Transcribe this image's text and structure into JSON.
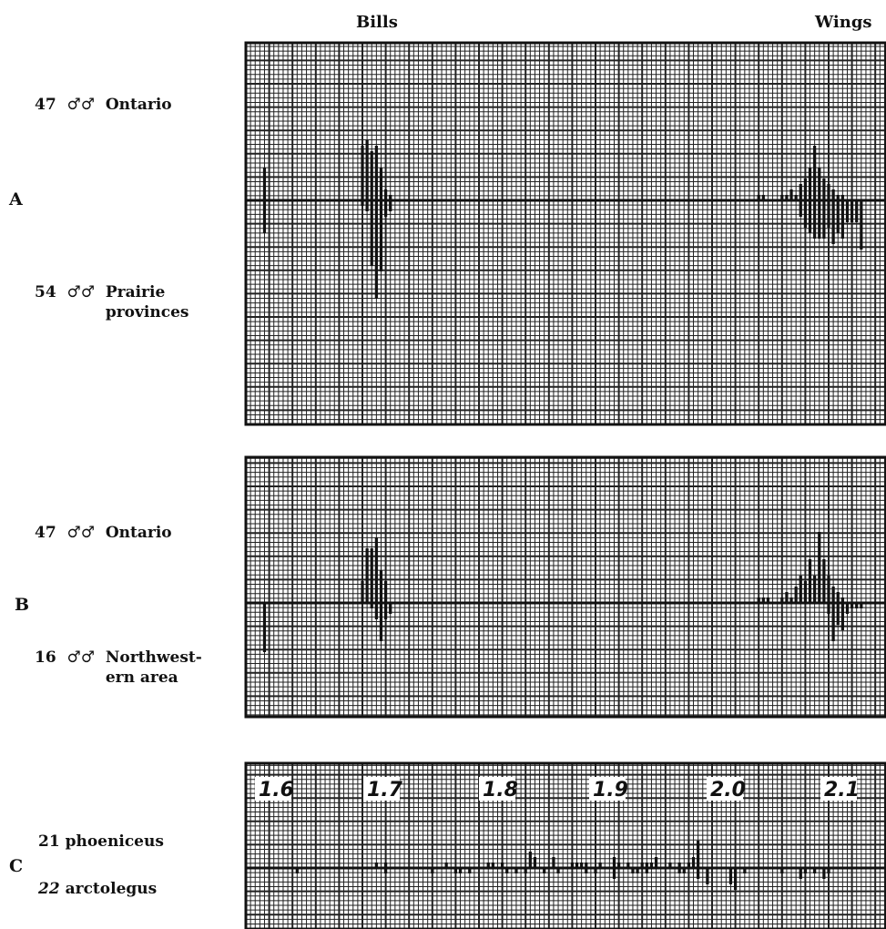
{
  "headings": {
    "bills": "Bills",
    "wings": "Wings"
  },
  "panels": {
    "A": {
      "letter": "A",
      "top_label": {
        "count": "47",
        "sex": "♂♂",
        "region": "Ontario"
      },
      "bottom_label": {
        "count": "54",
        "sex": "♂♂",
        "region_line1": "Prairie",
        "region_line2": "provinces"
      }
    },
    "B": {
      "letter": "B",
      "top_label": {
        "count": "47",
        "sex": "♂♂",
        "region": "Ontario"
      },
      "bottom_label": {
        "count": "16",
        "sex": "♂♂",
        "region_line1": "Northwest-",
        "region_line2": "ern area"
      }
    },
    "C": {
      "letter": "C",
      "top_label": {
        "count": "21",
        "name": "phoeniceus"
      },
      "bottom_label": {
        "count": "22",
        "name": "arctolegus"
      }
    }
  },
  "chart_data": [
    {
      "type": "bar",
      "panel": "A",
      "grid": true,
      "series": [
        {
          "name": "47 ♂♂ Ontario",
          "direction": "up",
          "bills": {
            "bins": [
              4,
              25,
              26,
              27,
              28,
              29,
              30,
              31
            ],
            "values": [
              6,
              10,
              11,
              9,
              10,
              6,
              2,
              1
            ]
          },
          "wings": {
            "bins": [
              110,
              111,
              115,
              116,
              117,
              118,
              119,
              120,
              121,
              122,
              123,
              124,
              125,
              126,
              127,
              128
            ],
            "values": [
              1,
              1,
              1,
              1,
              2,
              1,
              3,
              4,
              6,
              10,
              6,
              4,
              3,
              2,
              1,
              1
            ]
          }
        },
        {
          "name": "54 ♂♂ Prairie provinces",
          "direction": "down",
          "bills": {
            "bins": [
              4,
              25,
              26,
              27,
              28,
              29,
              30,
              31
            ],
            "values": [
              6,
              1,
              2,
              12,
              18,
              13,
              3,
              2
            ]
          },
          "wings": {
            "bins": [
              119,
              120,
              121,
              122,
              123,
              124,
              125,
              126,
              127,
              128,
              129,
              130,
              131,
              132
            ],
            "values": [
              3,
              5,
              6,
              7,
              7,
              7,
              5,
              8,
              6,
              7,
              4,
              4,
              4,
              9
            ]
          }
        }
      ]
    },
    {
      "type": "bar",
      "panel": "B",
      "grid": true,
      "series": [
        {
          "name": "47 ♂♂ Ontario",
          "direction": "up",
          "bills": {
            "bins": [
              25,
              26,
              27,
              28,
              29,
              30
            ],
            "values": [
              4,
              10,
              10,
              12,
              6,
              4
            ]
          },
          "wings": {
            "bins": [
              110,
              111,
              112,
              115,
              116,
              117,
              118,
              119,
              120,
              121,
              122,
              123,
              124,
              125,
              126,
              127,
              128
            ],
            "values": [
              1,
              1,
              1,
              1,
              2,
              1,
              3,
              5,
              4,
              8,
              5,
              13,
              8,
              5,
              3,
              2,
              1
            ]
          }
        },
        {
          "name": "16 ♂♂ Northwestern area",
          "direction": "down",
          "bills": {
            "bins": [
              4,
              27,
              28,
              29,
              30,
              31
            ],
            "values": [
              9,
              1,
              3,
              7,
              3,
              2
            ]
          },
          "wings": {
            "bins": [
              125,
              126,
              127,
              128,
              129,
              130,
              131,
              132
            ],
            "values": [
              2,
              7,
              4,
              5,
              2,
              1,
              1,
              1
            ]
          }
        }
      ]
    },
    {
      "type": "bar",
      "panel": "C",
      "grid": true,
      "xaxis_label_values": [
        "1.6",
        "1.7",
        "1.8",
        "1.9",
        "2.0",
        "2.1"
      ],
      "series": [
        {
          "name": "21 phoeniceus",
          "direction": "up",
          "bins": [
            28,
            30,
            43,
            52,
            53,
            55,
            61,
            62,
            66,
            70,
            71,
            72,
            73,
            76,
            79,
            80,
            82,
            85,
            86,
            87,
            88,
            91,
            93,
            95,
            96,
            97
          ],
          "values": [
            1,
            1,
            1,
            1,
            1,
            1,
            3,
            2,
            2,
            1,
            1,
            1,
            1,
            1,
            2,
            1,
            1,
            1,
            1,
            1,
            2,
            1,
            1,
            1,
            2,
            5
          ]
        },
        {
          "name": "22 arctolegus",
          "direction": "down",
          "bins": [
            11,
            30,
            40,
            45,
            46,
            48,
            56,
            58,
            60,
            64,
            67,
            73,
            75,
            79,
            83,
            84,
            86,
            93,
            94,
            97,
            99,
            104,
            105,
            107,
            115,
            119,
            120,
            122,
            124,
            125
          ],
          "values": [
            1,
            1,
            1,
            1,
            1,
            1,
            1,
            1,
            1,
            1,
            1,
            1,
            1,
            2,
            1,
            1,
            1,
            1,
            1,
            2,
            3,
            3,
            4,
            1,
            1,
            2,
            1,
            1,
            2,
            1
          ]
        }
      ]
    }
  ]
}
